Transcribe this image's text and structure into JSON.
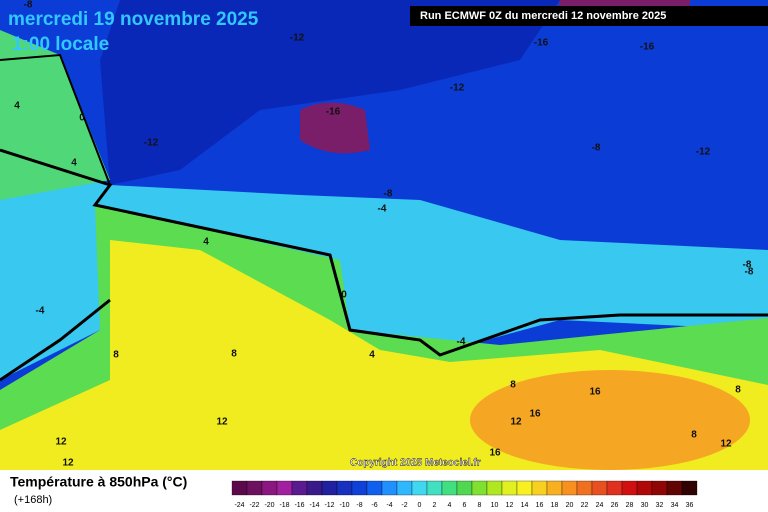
{
  "header": {
    "date": "mercredi 19 novembre 2025",
    "time": "1:00 locale",
    "run": "Run ECMWF 0Z du mercredi 12 novembre 2025"
  },
  "copyright": "Copyright 2025 Meteociel.fr",
  "contour_labels": [
    "-8",
    "-12",
    "-16",
    "-16",
    "-12",
    "-16",
    "-12",
    "-8",
    "-12",
    "4",
    "0",
    "4",
    "-8",
    "-4",
    "4",
    "0",
    "-4",
    "-4",
    "-8",
    "-8",
    "8",
    "8",
    "4",
    "8",
    "16",
    "8",
    "16",
    "12",
    "12",
    "12",
    "12",
    "16",
    "8",
    "12"
  ],
  "legend": {
    "title": "Température à 850hPa (°C)",
    "lead": "(+168h)",
    "scale": [
      -24,
      -22,
      -20,
      -18,
      -16,
      -14,
      -12,
      -10,
      -8,
      -6,
      -4,
      -2,
      0,
      2,
      4,
      6,
      8,
      10,
      12,
      14,
      16,
      18,
      20,
      22,
      24,
      26,
      28,
      30,
      32,
      34,
      36
    ]
  }
}
